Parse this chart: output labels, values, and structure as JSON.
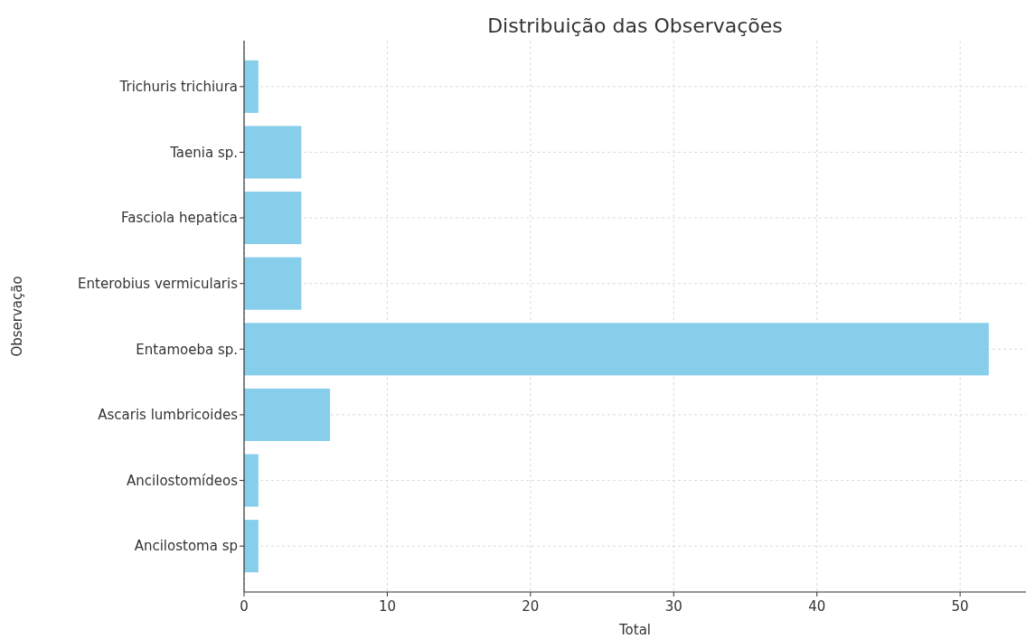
{
  "chart_data": {
    "type": "bar",
    "orientation": "horizontal",
    "title": "Distribuição das Observações",
    "xlabel": "Total",
    "ylabel": "Observação",
    "categories": [
      "Trichuris trichiura",
      "Taenia sp.",
      "Fasciola hepatica",
      "Enterobius vermicularis",
      "Entamoeba sp.",
      "Ascaris lumbricoides",
      "Ancilostomídeos",
      "Ancilostoma sp"
    ],
    "values": [
      1,
      4,
      4,
      4,
      52,
      6,
      1,
      1
    ],
    "color": "#87ceeb",
    "xlim": [
      0,
      54.6
    ],
    "xticks": [
      0,
      10,
      20,
      30,
      40,
      50
    ],
    "grid": true
  }
}
